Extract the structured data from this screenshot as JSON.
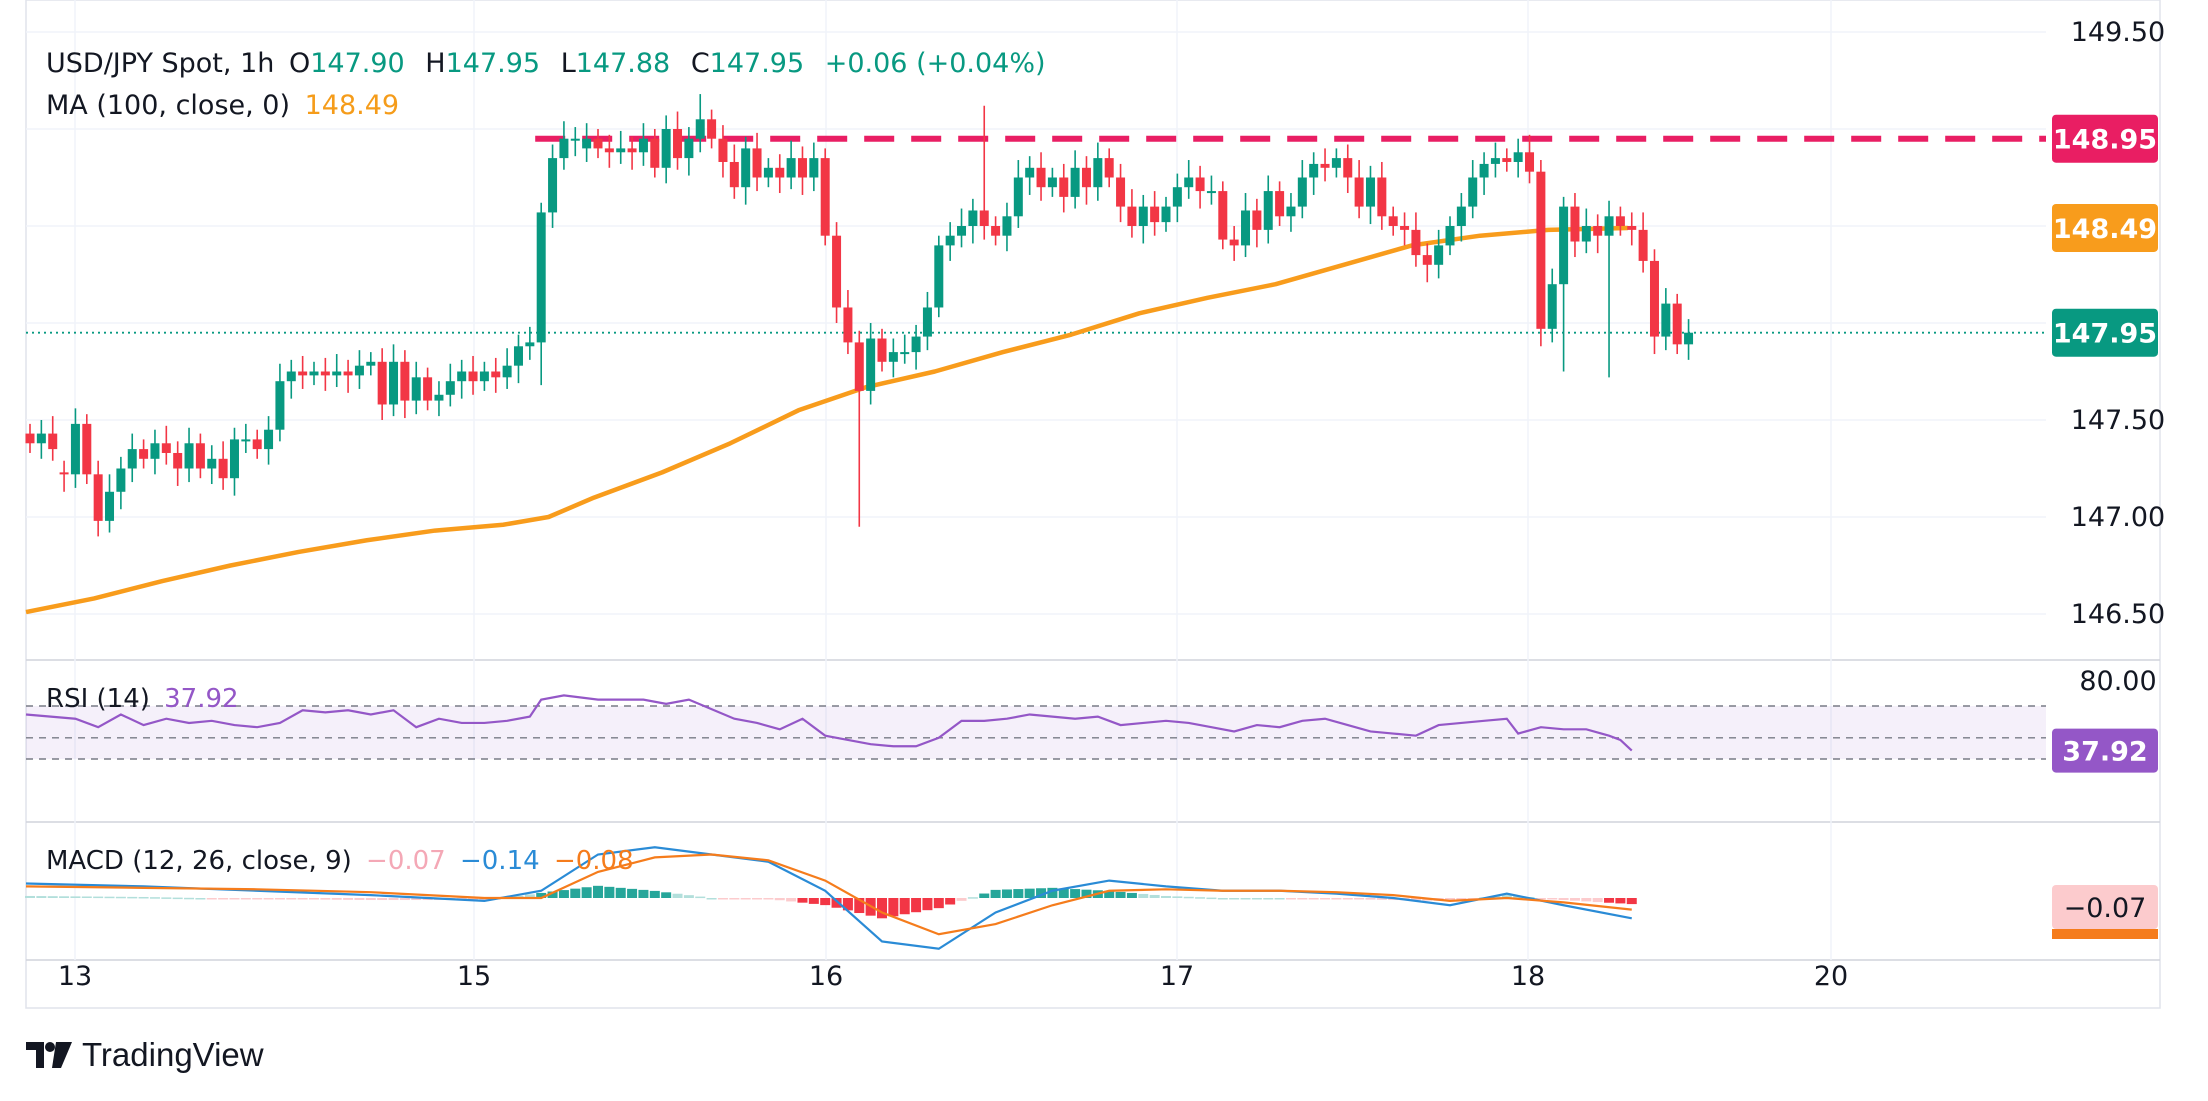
{
  "header": {
    "symbol": "USD/JPY Spot, 1h",
    "open_label": "O",
    "open": "147.90",
    "high_label": "H",
    "high": "147.95",
    "low_label": "L",
    "low": "147.88",
    "close_label": "C",
    "close": "147.95",
    "change": "+0.06 (+0.04%)",
    "ma_label": "MA (100, close, 0)",
    "ma_value": "148.49"
  },
  "rsi": {
    "label": "RSI (14)",
    "value": "37.92",
    "levels": [
      "80.00"
    ]
  },
  "macd": {
    "label": "MACD (12, 26, close, 9)",
    "hist": "−0.07",
    "macd": "−0.14",
    "signal": "−0.08",
    "badge": "−0.07"
  },
  "brand": {
    "name": "TradingView"
  },
  "colors": {
    "up": "#089981",
    "down": "#f23645",
    "ma": "#f89c1c",
    "resistance": "#e91e63",
    "rsi": "#9457c7",
    "macd": "#2a8bd6",
    "signal": "#f57c1c"
  },
  "chart_data": {
    "type": "candlestick",
    "x_tick_labels": [
      "13",
      "15",
      "16",
      "17",
      "18",
      "20"
    ],
    "y_tick_labels": [
      "149.50",
      "147.50",
      "147.00",
      "146.50"
    ],
    "ylim": [
      146.4,
      149.5
    ],
    "price_badges": [
      {
        "label": "148.95",
        "value": 148.95,
        "color": "#e91e63"
      },
      {
        "label": "148.49",
        "value": 148.49,
        "color": "#f89c1c"
      },
      {
        "label": "147.95",
        "value": 147.95,
        "color": "#089981"
      }
    ],
    "resistance_level": 148.95,
    "last_price": 147.95,
    "candles": [
      [
        147.43,
        147.38
      ],
      [
        147.38,
        147.43
      ],
      [
        147.43,
        147.35
      ],
      [
        147.23,
        147.22
      ],
      [
        147.22,
        147.48
      ],
      [
        147.48,
        147.22
      ],
      [
        147.22,
        146.98
      ],
      [
        146.98,
        147.13
      ],
      [
        147.13,
        147.25
      ],
      [
        147.25,
        147.35
      ],
      [
        147.35,
        147.3
      ],
      [
        147.3,
        147.38
      ],
      [
        147.38,
        147.33
      ],
      [
        147.33,
        147.25
      ],
      [
        147.25,
        147.38
      ],
      [
        147.38,
        147.25
      ],
      [
        147.25,
        147.3
      ],
      [
        147.3,
        147.2
      ],
      [
        147.2,
        147.4
      ],
      [
        147.4,
        147.4
      ],
      [
        147.4,
        147.35
      ],
      [
        147.35,
        147.45
      ],
      [
        147.45,
        147.7
      ],
      [
        147.7,
        147.75
      ],
      [
        147.75,
        147.73
      ],
      [
        147.73,
        147.75
      ],
      [
        147.75,
        147.73
      ],
      [
        147.73,
        147.75
      ],
      [
        147.75,
        147.73
      ],
      [
        147.73,
        147.78
      ],
      [
        147.78,
        147.8
      ],
      [
        147.8,
        147.58
      ],
      [
        147.58,
        147.8
      ],
      [
        147.8,
        147.6
      ],
      [
        147.6,
        147.72
      ],
      [
        147.72,
        147.6
      ],
      [
        147.6,
        147.63
      ],
      [
        147.63,
        147.7
      ],
      [
        147.7,
        147.75
      ],
      [
        147.75,
        147.7
      ],
      [
        147.7,
        147.75
      ],
      [
        147.75,
        147.72
      ],
      [
        147.72,
        147.78
      ],
      [
        147.78,
        147.88
      ],
      [
        147.88,
        147.9
      ],
      [
        147.9,
        148.57
      ],
      [
        148.57,
        148.85
      ],
      [
        148.85,
        148.95
      ],
      [
        148.95,
        148.95
      ],
      [
        148.9,
        148.95
      ],
      [
        148.95,
        148.9
      ],
      [
        148.9,
        148.88
      ],
      [
        148.88,
        148.9
      ],
      [
        148.9,
        148.88
      ],
      [
        148.88,
        148.95
      ],
      [
        148.95,
        148.8
      ],
      [
        148.8,
        149.0
      ],
      [
        149.0,
        148.85
      ],
      [
        148.85,
        148.95
      ],
      [
        148.95,
        149.05
      ],
      [
        149.05,
        148.95
      ],
      [
        148.95,
        148.83
      ],
      [
        148.83,
        148.7
      ],
      [
        148.7,
        148.9
      ],
      [
        148.9,
        148.75
      ],
      [
        148.75,
        148.8
      ],
      [
        148.8,
        148.75
      ],
      [
        148.75,
        148.85
      ],
      [
        148.85,
        148.75
      ],
      [
        148.75,
        148.85
      ],
      [
        148.85,
        148.45
      ],
      [
        148.45,
        148.08
      ],
      [
        148.08,
        147.9
      ],
      [
        147.9,
        147.65
      ],
      [
        147.65,
        147.92
      ],
      [
        147.92,
        147.8
      ],
      [
        147.8,
        147.85
      ],
      [
        147.85,
        147.85
      ],
      [
        147.85,
        147.93
      ],
      [
        147.93,
        148.08
      ],
      [
        148.08,
        148.4
      ],
      [
        148.4,
        148.45
      ],
      [
        148.45,
        148.5
      ],
      [
        148.5,
        148.58
      ],
      [
        148.58,
        148.5
      ],
      [
        148.5,
        148.45
      ],
      [
        148.45,
        148.55
      ],
      [
        148.55,
        148.75
      ],
      [
        148.75,
        148.8
      ],
      [
        148.8,
        148.7
      ],
      [
        148.7,
        148.75
      ],
      [
        148.75,
        148.65
      ],
      [
        148.65,
        148.8
      ],
      [
        148.8,
        148.7
      ],
      [
        148.7,
        148.85
      ],
      [
        148.85,
        148.75
      ],
      [
        148.75,
        148.6
      ],
      [
        148.6,
        148.5
      ],
      [
        148.5,
        148.6
      ],
      [
        148.6,
        148.52
      ],
      [
        148.52,
        148.6
      ],
      [
        148.6,
        148.7
      ],
      [
        148.7,
        148.75
      ],
      [
        148.75,
        148.68
      ],
      [
        148.68,
        148.68
      ],
      [
        148.68,
        148.43
      ],
      [
        148.43,
        148.4
      ],
      [
        148.4,
        148.58
      ],
      [
        148.58,
        148.48
      ],
      [
        148.48,
        148.68
      ],
      [
        148.68,
        148.55
      ],
      [
        148.55,
        148.6
      ],
      [
        148.6,
        148.75
      ],
      [
        148.75,
        148.82
      ],
      [
        148.82,
        148.8
      ],
      [
        148.8,
        148.85
      ],
      [
        148.85,
        148.75
      ],
      [
        148.75,
        148.6
      ],
      [
        148.6,
        148.75
      ],
      [
        148.75,
        148.55
      ],
      [
        148.55,
        148.5
      ],
      [
        148.5,
        148.48
      ],
      [
        148.48,
        148.35
      ],
      [
        148.35,
        148.3
      ],
      [
        148.3,
        148.4
      ],
      [
        148.4,
        148.5
      ],
      [
        148.5,
        148.6
      ],
      [
        148.6,
        148.75
      ],
      [
        148.75,
        148.82
      ],
      [
        148.82,
        148.85
      ],
      [
        148.85,
        148.83
      ],
      [
        148.83,
        148.88
      ],
      [
        148.88,
        148.78
      ],
      [
        148.78,
        147.97
      ],
      [
        147.97,
        148.2
      ],
      [
        148.2,
        148.6
      ],
      [
        148.6,
        148.42
      ],
      [
        148.42,
        148.5
      ],
      [
        148.5,
        148.45
      ],
      [
        148.45,
        148.55
      ],
      [
        148.55,
        148.5
      ],
      [
        148.5,
        148.48
      ],
      [
        148.48,
        148.32
      ],
      [
        148.32,
        147.93
      ],
      [
        147.93,
        148.1
      ],
      [
        148.1,
        147.89
      ],
      [
        147.89,
        147.95
      ]
    ],
    "ma100": [
      [
        0,
        146.51
      ],
      [
        6,
        146.58
      ],
      [
        12,
        146.67
      ],
      [
        18,
        146.75
      ],
      [
        24,
        146.82
      ],
      [
        30,
        146.88
      ],
      [
        36,
        146.93
      ],
      [
        42,
        146.96
      ],
      [
        46,
        147.0
      ],
      [
        50,
        147.1
      ],
      [
        56,
        147.23
      ],
      [
        62,
        147.38
      ],
      [
        68,
        147.55
      ],
      [
        74,
        147.67
      ],
      [
        80,
        147.75
      ],
      [
        86,
        147.85
      ],
      [
        92,
        147.94
      ],
      [
        98,
        148.05
      ],
      [
        104,
        148.13
      ],
      [
        110,
        148.2
      ],
      [
        116,
        148.3
      ],
      [
        122,
        148.4
      ],
      [
        128,
        148.45
      ],
      [
        134,
        148.48
      ],
      [
        141,
        148.49
      ]
    ],
    "rsi_series": [
      [
        0,
        72
      ],
      [
        4,
        68
      ],
      [
        6,
        60
      ],
      [
        8,
        72
      ],
      [
        10,
        62
      ],
      [
        12,
        68
      ],
      [
        14,
        64
      ],
      [
        16,
        66
      ],
      [
        18,
        62
      ],
      [
        20,
        60
      ],
      [
        22,
        64
      ],
      [
        24,
        76
      ],
      [
        26,
        74
      ],
      [
        28,
        76
      ],
      [
        30,
        72
      ],
      [
        32,
        76
      ],
      [
        34,
        60
      ],
      [
        36,
        68
      ],
      [
        38,
        64
      ],
      [
        40,
        64
      ],
      [
        42,
        66
      ],
      [
        44,
        70
      ],
      [
        45,
        86
      ],
      [
        47,
        90
      ],
      [
        50,
        86
      ],
      [
        54,
        86
      ],
      [
        56,
        82
      ],
      [
        58,
        86
      ],
      [
        62,
        68
      ],
      [
        64,
        64
      ],
      [
        66,
        58
      ],
      [
        68,
        68
      ],
      [
        70,
        52
      ],
      [
        72,
        48
      ],
      [
        74,
        44
      ],
      [
        76,
        42
      ],
      [
        78,
        42
      ],
      [
        80,
        50
      ],
      [
        82,
        66
      ],
      [
        84,
        66
      ],
      [
        86,
        68
      ],
      [
        88,
        72
      ],
      [
        90,
        70
      ],
      [
        92,
        68
      ],
      [
        94,
        70
      ],
      [
        96,
        62
      ],
      [
        98,
        64
      ],
      [
        100,
        66
      ],
      [
        102,
        64
      ],
      [
        104,
        60
      ],
      [
        106,
        56
      ],
      [
        108,
        62
      ],
      [
        110,
        60
      ],
      [
        112,
        66
      ],
      [
        114,
        68
      ],
      [
        116,
        62
      ],
      [
        118,
        56
      ],
      [
        120,
        54
      ],
      [
        122,
        52
      ],
      [
        124,
        62
      ],
      [
        126,
        64
      ],
      [
        128,
        66
      ],
      [
        130,
        68
      ],
      [
        131,
        54
      ],
      [
        133,
        60
      ],
      [
        135,
        58
      ],
      [
        137,
        58
      ],
      [
        139,
        52
      ],
      [
        140,
        48
      ],
      [
        141,
        38
      ]
    ],
    "macd_series": [
      [
        0,
        0.1
      ],
      [
        10,
        0.08
      ],
      [
        20,
        0.05
      ],
      [
        30,
        0.02
      ],
      [
        40,
        -0.02
      ],
      [
        45,
        0.05
      ],
      [
        50,
        0.3
      ],
      [
        55,
        0.35
      ],
      [
        60,
        0.3
      ],
      [
        65,
        0.25
      ],
      [
        70,
        0.05
      ],
      [
        75,
        -0.3
      ],
      [
        80,
        -0.35
      ],
      [
        85,
        -0.1
      ],
      [
        90,
        0.05
      ],
      [
        95,
        0.12
      ],
      [
        100,
        0.08
      ],
      [
        105,
        0.05
      ],
      [
        110,
        0.05
      ],
      [
        115,
        0.03
      ],
      [
        120,
        0.0
      ],
      [
        125,
        -0.05
      ],
      [
        130,
        0.03
      ],
      [
        135,
        -0.05
      ],
      [
        141,
        -0.14
      ]
    ],
    "signal_series": [
      [
        0,
        0.08
      ],
      [
        10,
        0.07
      ],
      [
        20,
        0.06
      ],
      [
        30,
        0.04
      ],
      [
        40,
        0.0
      ],
      [
        45,
        0.0
      ],
      [
        50,
        0.18
      ],
      [
        55,
        0.28
      ],
      [
        60,
        0.3
      ],
      [
        65,
        0.26
      ],
      [
        70,
        0.12
      ],
      [
        75,
        -0.1
      ],
      [
        80,
        -0.25
      ],
      [
        85,
        -0.18
      ],
      [
        90,
        -0.05
      ],
      [
        95,
        0.05
      ],
      [
        100,
        0.06
      ],
      [
        105,
        0.05
      ],
      [
        110,
        0.05
      ],
      [
        115,
        0.04
      ],
      [
        120,
        0.02
      ],
      [
        125,
        -0.02
      ],
      [
        130,
        0.0
      ],
      [
        135,
        -0.03
      ],
      [
        141,
        -0.08
      ]
    ]
  }
}
